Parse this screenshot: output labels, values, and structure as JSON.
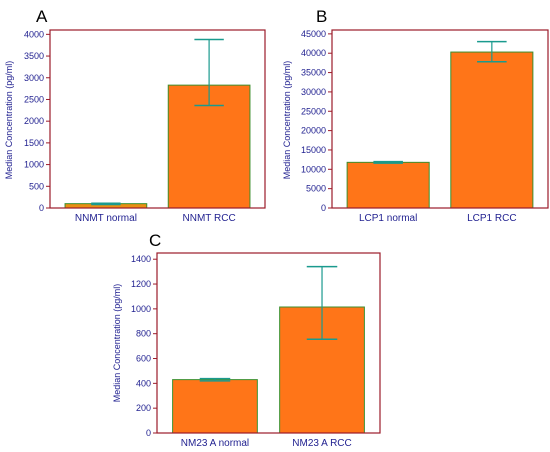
{
  "colors": {
    "frame": "#9b1b2a",
    "axis_text": "#1f1f8f",
    "bar_fill": "#ff7518",
    "bar_fill_low": "#e98f12",
    "bar_stroke": "#3c8f2e",
    "error_bar": "#1a9a8e"
  },
  "chart_data": [
    {
      "type": "bar",
      "panel": "A",
      "title": "",
      "xlabel": "",
      "ylabel": "Median Concentration (pg/ml)",
      "categories": [
        "NNMT normal",
        "NNMT RCC"
      ],
      "values": [
        100,
        2830
      ],
      "error_low": [
        80,
        2360
      ],
      "error_high": [
        110,
        3880
      ],
      "ylim": [
        0,
        4100
      ],
      "yticks": [
        0,
        500,
        1000,
        1500,
        2000,
        2500,
        3000,
        3500,
        4000
      ],
      "grid": false
    },
    {
      "type": "bar",
      "panel": "B",
      "title": "",
      "xlabel": "",
      "ylabel": "Median Concentration (pg/ml)",
      "categories": [
        "LCP1 normal",
        "LCP1 RCC"
      ],
      "values": [
        11800,
        40300
      ],
      "error_low": [
        11600,
        37800
      ],
      "error_high": [
        12000,
        43000
      ],
      "ylim": [
        0,
        46000
      ],
      "yticks": [
        0,
        5000,
        10000,
        15000,
        20000,
        25000,
        30000,
        35000,
        40000,
        45000
      ],
      "grid": false
    },
    {
      "type": "bar",
      "panel": "C",
      "title": "",
      "xlabel": "",
      "ylabel": "Median Concentration (pg/ml)",
      "categories": [
        "NM23 A normal",
        "NM23 A RCC"
      ],
      "values": [
        430,
        1015
      ],
      "error_low": [
        420,
        755
      ],
      "error_high": [
        438,
        1340
      ],
      "ylim": [
        0,
        1450
      ],
      "yticks": [
        0,
        200,
        400,
        600,
        800,
        1000,
        1200,
        1400
      ],
      "grid": false
    }
  ]
}
